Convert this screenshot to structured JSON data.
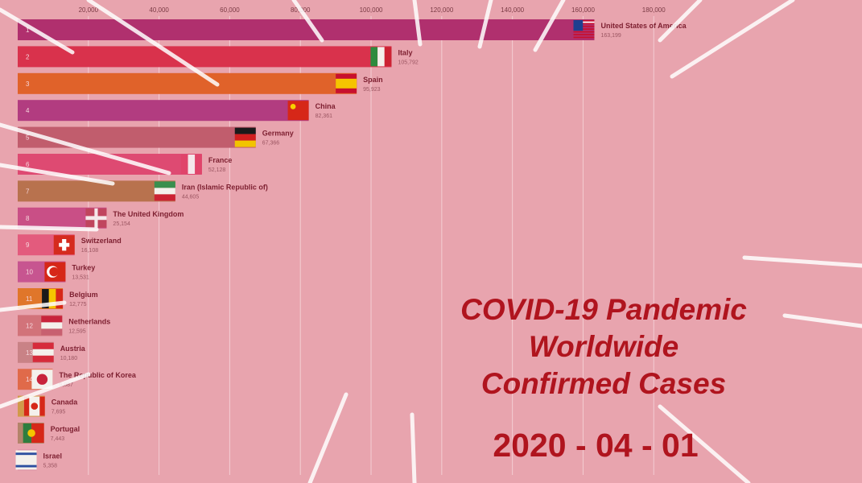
{
  "title": {
    "lines": [
      "COVID-19 Pandemic",
      "Worldwide",
      "Confirmed Cases"
    ]
  },
  "date": "2020 - 04 - 01",
  "colors": {
    "background": "#e8a4ae",
    "title": "#b0141e",
    "axis_text": "#7a3b45"
  },
  "chart_data": {
    "type": "bar",
    "orientation": "horizontal",
    "title": "COVID-19 Pandemic Worldwide Confirmed Cases",
    "xlim": [
      0,
      205000
    ],
    "x_ticks": [
      20000,
      40000,
      60000,
      80000,
      100000,
      120000,
      140000,
      160000,
      180000
    ],
    "x_tick_labels": [
      "20,000",
      "40,000",
      "60,000",
      "80,000",
      "100,000",
      "120,000",
      "140,000",
      "160,000",
      "180,000"
    ],
    "grid": true,
    "categories": [
      "United States of America",
      "Italy",
      "Spain",
      "China",
      "Germany",
      "France",
      "Iran (Islamic Republic of)",
      "The United Kingdom",
      "Switzerland",
      "Turkey",
      "Belgium",
      "Netherlands",
      "Austria",
      "The Republic of Korea",
      "Canada",
      "Portugal",
      "Israel"
    ],
    "values": [
      163199,
      105792,
      95923,
      82361,
      67366,
      52128,
      44605,
      25154,
      16108,
      13531,
      12775,
      12595,
      10180,
      9887,
      7695,
      7443,
      5358
    ],
    "value_labels": [
      "163,199",
      "105,792",
      "95,923",
      "82,361",
      "67,366",
      "52,128",
      "44,605",
      "25,154",
      "16,108",
      "13,531",
      "12,775",
      "12,595",
      "10,180",
      "9,887",
      "7,695",
      "7,443",
      "5,358"
    ],
    "bar_colors": [
      "#b0306e",
      "#d9324c",
      "#e0622a",
      "#b23c80",
      "#c15d6d",
      "#de4a72",
      "#b8724e",
      "#c94f86",
      "#e35b7d",
      "#c75590",
      "#e0762a",
      "#d2737a",
      "#c98286",
      "#e06a4a",
      "#d19a4a",
      "#b3846a",
      "#d78aa0"
    ],
    "flags": [
      "usa-flag-icon",
      "italy-flag-icon",
      "spain-flag-icon",
      "china-flag-icon",
      "germany-flag-icon",
      "france-flag-icon",
      "iran-flag-icon",
      "uk-flag-icon",
      "switzerland-flag-icon",
      "turkey-flag-icon",
      "belgium-flag-icon",
      "netherlands-flag-icon",
      "austria-flag-icon",
      "korea-flag-icon",
      "canada-flag-icon",
      "portugal-flag-icon",
      "israel-flag-icon"
    ]
  }
}
